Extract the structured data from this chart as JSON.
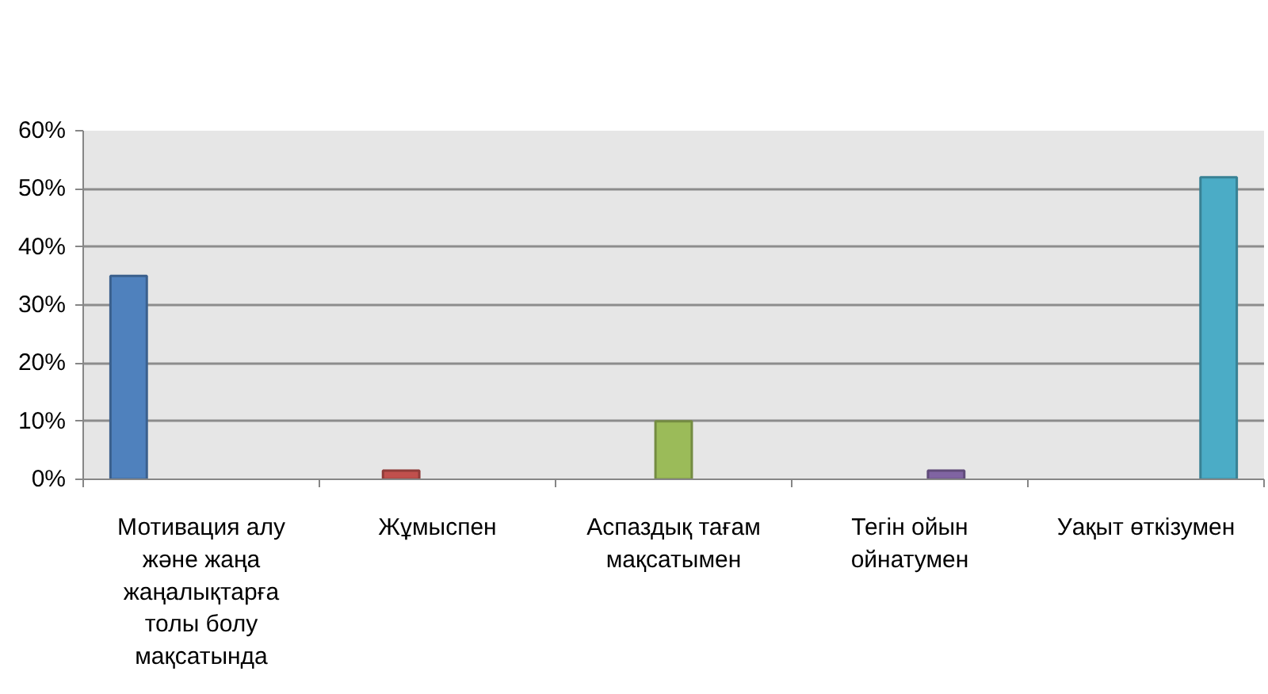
{
  "chart_data": {
    "type": "bar",
    "categories": [
      "Мотивация алу және жаңа жаңалықтарға толы болу мақсатында",
      "Жұмыспен",
      "Аспаздық тағам мақсатымен",
      "Тегін ойын ойнатумен",
      "Уақыт өткізумен"
    ],
    "series": [
      {
        "color": "#4f81bd",
        "values": [
          35,
          null,
          null,
          null,
          null
        ]
      },
      {
        "color": "#c0504d",
        "values": [
          null,
          1.5,
          null,
          null,
          null
        ]
      },
      {
        "color": "#9bbb59",
        "values": [
          null,
          null,
          10,
          null,
          null
        ]
      },
      {
        "color": "#8064a2",
        "values": [
          null,
          null,
          null,
          1.5,
          null
        ]
      },
      {
        "color": "#4bacc6",
        "values": [
          null,
          null,
          null,
          null,
          52
        ]
      }
    ],
    "ylim": [
      0,
      60
    ],
    "yticks": [
      {
        "value": 0,
        "label": "0%"
      },
      {
        "value": 10,
        "label": "10%"
      },
      {
        "value": 20,
        "label": "20%"
      },
      {
        "value": 30,
        "label": "30%"
      },
      {
        "value": 40,
        "label": "40%"
      },
      {
        "value": 50,
        "label": "50%"
      },
      {
        "value": 60,
        "label": "60%"
      }
    ],
    "grid": "y"
  }
}
